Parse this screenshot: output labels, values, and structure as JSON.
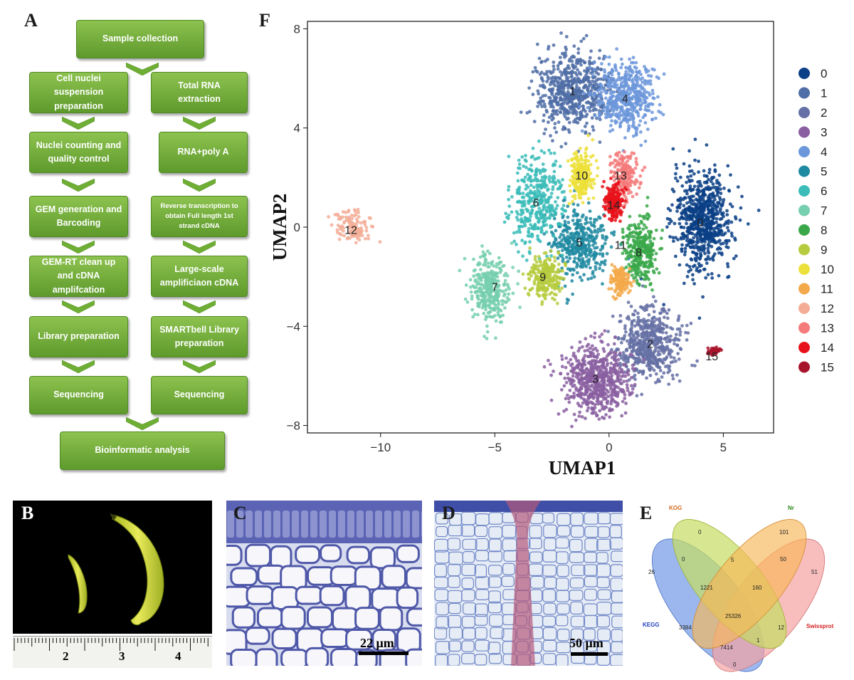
{
  "panels": {
    "a": "A",
    "b": "B",
    "c": "C",
    "d": "D",
    "e": "E",
    "f": "F"
  },
  "flowchart": {
    "top": "Sample collection",
    "left": [
      "Cell nuclei suspension preparation",
      "Nuclei counting and quality control",
      "GEM generation and Barcoding",
      "GEM-RT clean up and cDNA amplifcation",
      "Library preparation",
      "Sequencing"
    ],
    "right": [
      "Total RNA extraction",
      "RNA+poly A",
      "Reverse transcription to obtain Full length 1st strand cDNA",
      "Large-scale amplificiaon cDNA",
      "SMARTbell Library preparation",
      "Sequencing"
    ],
    "bottom": "Bioinformatic analysis"
  },
  "panel_b": {
    "ruler_labels": [
      "2",
      "3",
      "4"
    ]
  },
  "panel_c": {
    "scale_bar": "22 μm"
  },
  "panel_d": {
    "scale_bar": "50 μm"
  },
  "venn": {
    "sets": [
      "KOG",
      "Nr",
      "KEGG",
      "Swissprot"
    ],
    "set_colors": [
      "#7b9fe8",
      "#c6dd63",
      "#f7b758",
      "#f5a3a3"
    ],
    "label_colors": [
      "#d2691e",
      "#2e8b1e",
      "#1f3fbf",
      "#d42020"
    ],
    "regions": [
      "0",
      "101",
      "26",
      "0",
      "5",
      "50",
      "51",
      "1221",
      "160",
      "25326",
      "3384",
      "12",
      "7414",
      "1",
      "0"
    ]
  },
  "chart_data": {
    "type": "scatter",
    "title": "",
    "xlabel": "UMAP1",
    "ylabel": "UMAP2",
    "xlim": [
      -13.2,
      7.2
    ],
    "ylim": [
      -8.3,
      8.3
    ],
    "xticks": [
      "−10",
      "−5",
      "0",
      "5"
    ],
    "yticks": [
      "8",
      "4",
      "0",
      "−4",
      "−8"
    ],
    "legend_position": "right",
    "grid": false,
    "clusters": [
      {
        "name": "0",
        "color": "#0b3f86",
        "center": [
          4.1,
          0.3
        ]
      },
      {
        "name": "1",
        "color": "#4f6da6",
        "center": [
          -1.6,
          5.5
        ]
      },
      {
        "name": "2",
        "color": "#6570a4",
        "center": [
          1.8,
          -4.7
        ]
      },
      {
        "name": "3",
        "color": "#8a5fa1",
        "center": [
          -0.6,
          -6.2
        ]
      },
      {
        "name": "4",
        "color": "#6c97da",
        "center": [
          0.7,
          5.2
        ]
      },
      {
        "name": "5",
        "color": "#1e8aa1",
        "center": [
          -1.3,
          -0.6
        ]
      },
      {
        "name": "6",
        "color": "#3bbcb8",
        "center": [
          -3.2,
          1.1
        ]
      },
      {
        "name": "7",
        "color": "#76cfae",
        "center": [
          -5.2,
          -2.5
        ]
      },
      {
        "name": "8",
        "color": "#3aa84a",
        "center": [
          1.4,
          -1.0
        ]
      },
      {
        "name": "9",
        "color": "#b6cb3d",
        "center": [
          -2.8,
          -2.0
        ]
      },
      {
        "name": "10",
        "color": "#ece13a",
        "center": [
          -1.2,
          2.1
        ]
      },
      {
        "name": "11",
        "color": "#f3a94a",
        "center": [
          0.5,
          -2.2
        ]
      },
      {
        "name": "12",
        "color": "#f3ad96",
        "center": [
          -11.2,
          0.0
        ]
      },
      {
        "name": "13",
        "color": "#f57a7a",
        "center": [
          0.7,
          2.1
        ]
      },
      {
        "name": "14",
        "color": "#e8121a",
        "center": [
          0.2,
          1.0
        ]
      },
      {
        "name": "15",
        "color": "#a8132c",
        "center": [
          4.6,
          -5.0
        ]
      }
    ],
    "cluster_labels": [
      {
        "name": "1",
        "x": -1.6,
        "y": 5.5
      },
      {
        "name": "4",
        "x": 0.7,
        "y": 5.2
      },
      {
        "name": "10",
        "x": -1.2,
        "y": 2.1
      },
      {
        "name": "13",
        "x": 0.5,
        "y": 2.1
      },
      {
        "name": "14",
        "x": 0.2,
        "y": 0.9
      },
      {
        "name": "6",
        "x": -3.2,
        "y": 1.0
      },
      {
        "name": "0",
        "x": 4.0,
        "y": 0.2
      },
      {
        "name": "12",
        "x": -11.3,
        "y": -0.1
      },
      {
        "name": "5",
        "x": -1.3,
        "y": -0.6
      },
      {
        "name": "11",
        "x": 0.5,
        "y": -0.7
      },
      {
        "name": "8",
        "x": 1.3,
        "y": -1.0
      },
      {
        "name": "9",
        "x": -2.9,
        "y": -2.0
      },
      {
        "name": "7",
        "x": -5.0,
        "y": -2.4
      },
      {
        "name": "2",
        "x": 1.8,
        "y": -4.7
      },
      {
        "name": "15",
        "x": 4.5,
        "y": -5.2
      },
      {
        "name": "3",
        "x": -0.6,
        "y": -6.1
      }
    ]
  }
}
